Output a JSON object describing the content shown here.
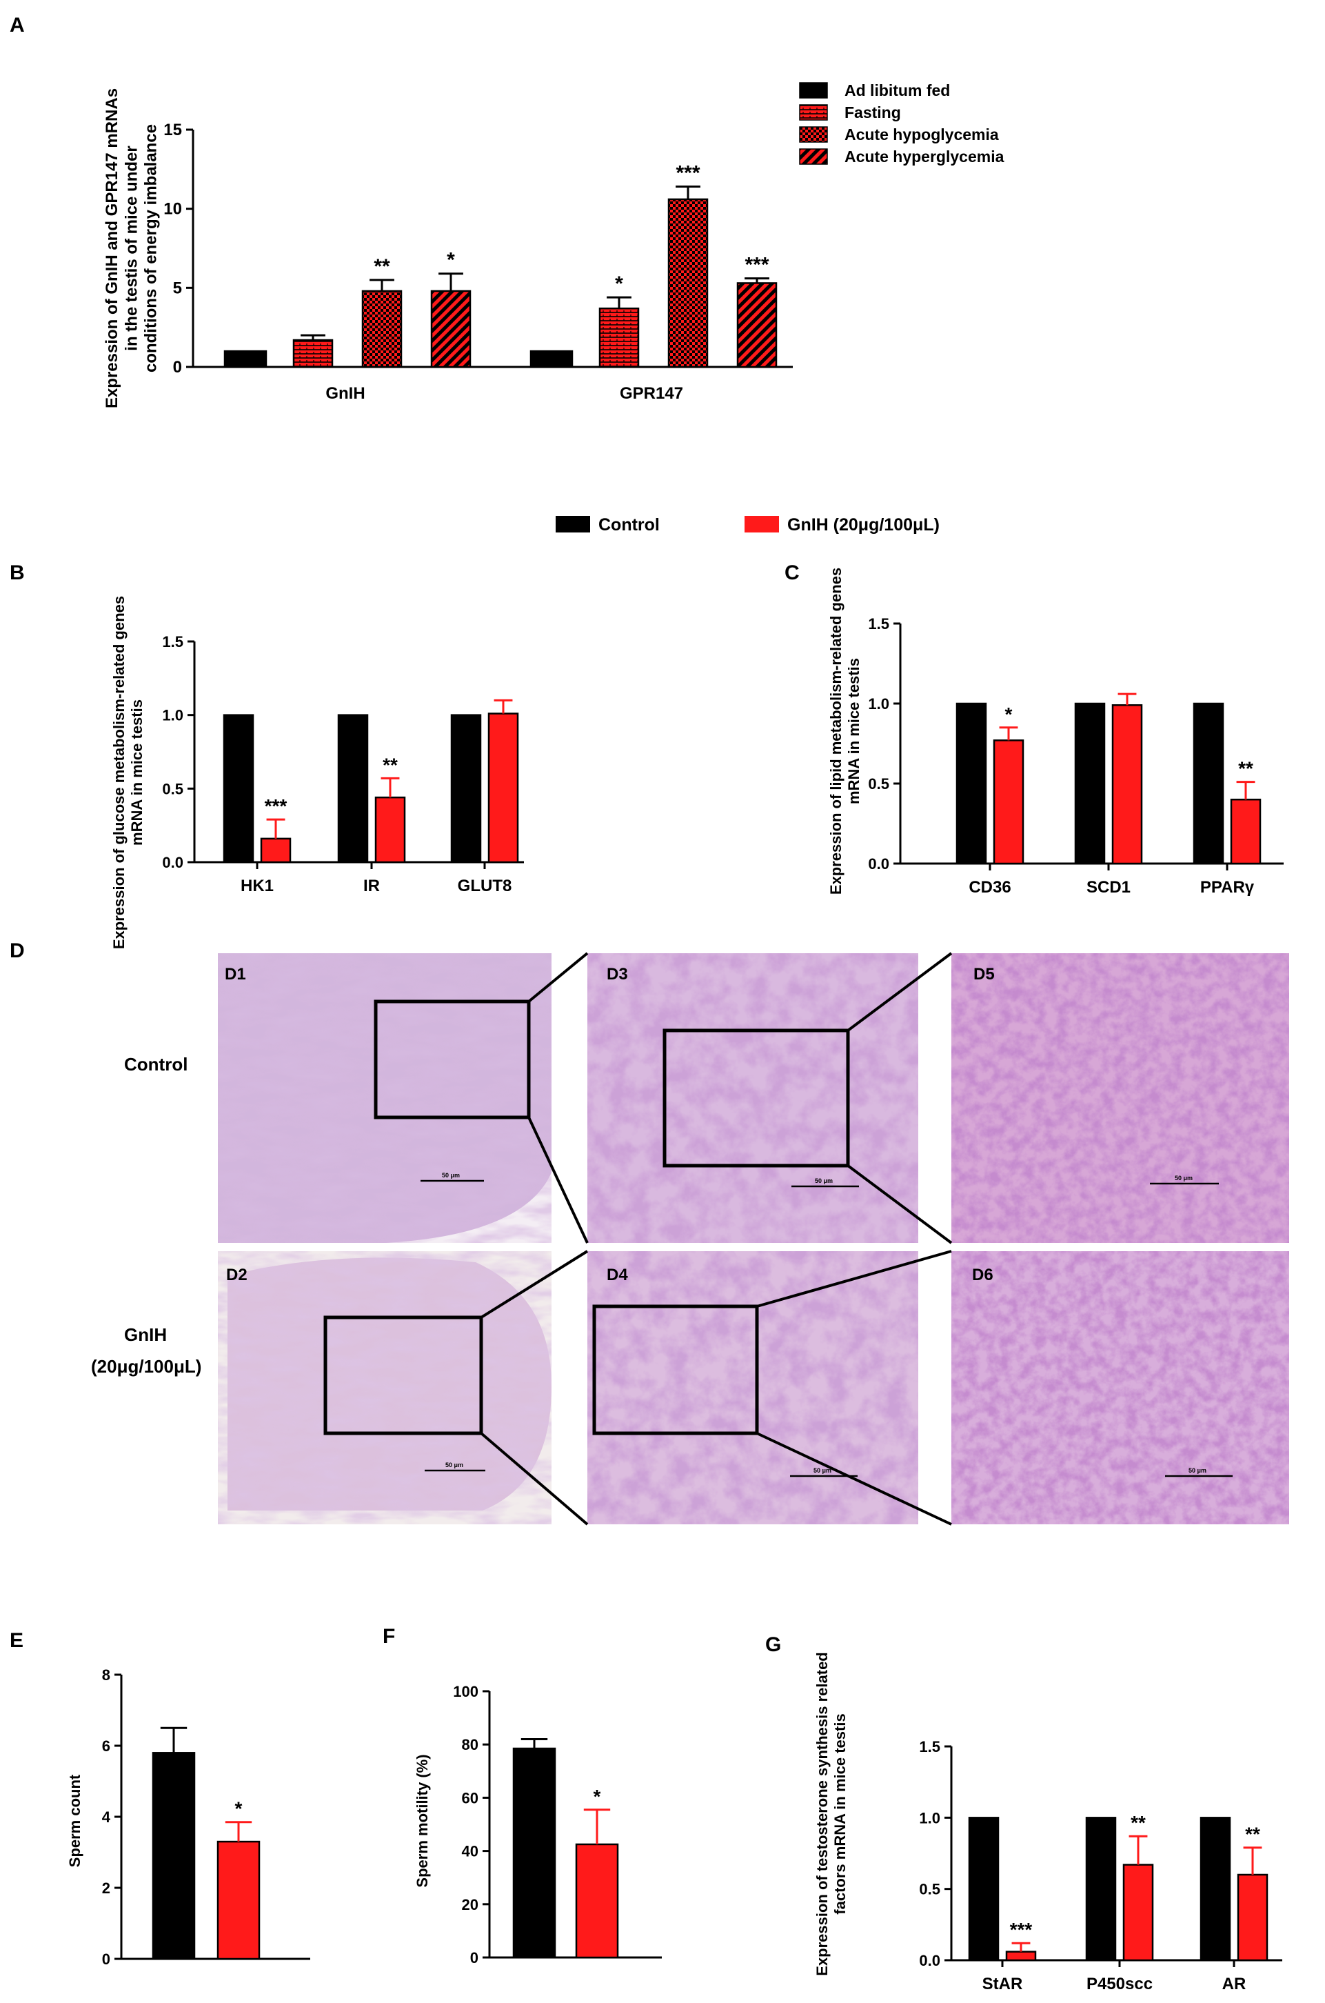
{
  "panels": {
    "A": "A",
    "B": "B",
    "C": "C",
    "D": "D",
    "E": "E",
    "F": "F",
    "G": "G"
  },
  "shared_legend": {
    "control": "Control",
    "gnih": "GnIH (20μg/100μL)",
    "colors": {
      "control": "#000000",
      "gnih": "#ff1a1a"
    }
  },
  "histology": {
    "row_labels": [
      "Control",
      "GnIH",
      "(20μg/100μL)"
    ],
    "tiles": [
      "D1",
      "D3",
      "D5",
      "D2",
      "D4",
      "D6"
    ],
    "scale_bar": "50 μm"
  },
  "chart_data": [
    {
      "id": "A",
      "type": "bar",
      "ylabel": "Expression of GnIH and GPR147 mRNAs in the testis of mice under conditions of energy imbalance",
      "ylim": [
        0,
        15
      ],
      "yticks": [
        0,
        5,
        10,
        15
      ],
      "categories": [
        "GnIH",
        "GPR147"
      ],
      "series": [
        {
          "name": "Ad libitum fed",
          "pattern": "solid",
          "values": [
            1.0,
            1.0
          ],
          "errors": [
            0,
            0
          ],
          "sig": [
            "",
            ""
          ]
        },
        {
          "name": "Fasting",
          "pattern": "brick",
          "values": [
            1.7,
            3.7
          ],
          "errors": [
            0.3,
            0.7
          ],
          "sig": [
            "",
            "*"
          ]
        },
        {
          "name": "Acute hypoglycemia",
          "pattern": "checker",
          "values": [
            4.8,
            10.6
          ],
          "errors": [
            0.7,
            0.8
          ],
          "sig": [
            "**",
            "***"
          ]
        },
        {
          "name": "Acute hyperglycemia",
          "pattern": "diagonal",
          "values": [
            4.8,
            5.3
          ],
          "errors": [
            1.1,
            0.3
          ],
          "sig": [
            "*",
            "***"
          ]
        }
      ],
      "legend": "top-right"
    },
    {
      "id": "B",
      "type": "bar",
      "ylabel": "Expression of glucose metabolism-related genes mRNA in mice testis",
      "ylim": [
        0,
        1.5
      ],
      "yticks": [
        "0.0",
        "0.5",
        "1.0",
        "1.5"
      ],
      "categories": [
        "HK1",
        "IR",
        "GLUT8"
      ],
      "series": [
        {
          "name": "Control",
          "values": [
            1.0,
            1.0,
            1.0
          ],
          "errors": [
            0,
            0,
            0
          ],
          "sig": [
            "",
            "",
            ""
          ]
        },
        {
          "name": "GnIH (20μg/100μL)",
          "values": [
            0.16,
            0.44,
            1.01
          ],
          "errors": [
            0.13,
            0.13,
            0.09
          ],
          "sig": [
            "***",
            "**",
            ""
          ]
        }
      ]
    },
    {
      "id": "C",
      "type": "bar",
      "ylabel": "Expression of lipid metabolism-related genes mRNA in mice testis",
      "ylim": [
        0,
        1.5
      ],
      "yticks": [
        "0.0",
        "0.5",
        "1.0",
        "1.5"
      ],
      "categories": [
        "CD36",
        "SCD1",
        "PPARγ"
      ],
      "series": [
        {
          "name": "Control",
          "values": [
            1.0,
            1.0,
            1.0
          ],
          "errors": [
            0,
            0,
            0
          ],
          "sig": [
            "",
            "",
            ""
          ]
        },
        {
          "name": "GnIH (20μg/100μL)",
          "values": [
            0.77,
            0.99,
            0.4
          ],
          "errors": [
            0.08,
            0.07,
            0.11
          ],
          "sig": [
            "*",
            "",
            "**"
          ]
        }
      ]
    },
    {
      "id": "E",
      "type": "bar",
      "ylabel": "Sperm count",
      "ylim": [
        0,
        8
      ],
      "yticks": [
        0,
        2,
        4,
        6,
        8
      ],
      "categories": [
        "Control",
        "GnIH (20μg/100μL)"
      ],
      "series": [
        {
          "name": "Sperm count",
          "values": [
            5.8,
            3.3
          ],
          "errors": [
            0.7,
            0.55
          ],
          "sig": [
            "",
            "*"
          ]
        }
      ]
    },
    {
      "id": "F",
      "type": "bar",
      "ylabel": "Sperm motility (%)",
      "ylim": [
        0,
        100
      ],
      "yticks": [
        0,
        20,
        40,
        60,
        80,
        100
      ],
      "categories": [
        "Control",
        "GnIH (20μg/100μL)"
      ],
      "series": [
        {
          "name": "Sperm motility",
          "values": [
            78.5,
            42.5
          ],
          "errors": [
            3.5,
            13.0
          ],
          "sig": [
            "",
            "*"
          ]
        }
      ]
    },
    {
      "id": "G",
      "type": "bar",
      "ylabel": "Expression of testosterone synthesis related factors mRNA in mice testis",
      "ylim": [
        0,
        1.5
      ],
      "yticks": [
        "0.0",
        "0.5",
        "1.0",
        "1.5"
      ],
      "categories": [
        "StAR",
        "P450scc",
        "AR"
      ],
      "series": [
        {
          "name": "Control",
          "values": [
            1.0,
            1.0,
            1.0
          ],
          "errors": [
            0,
            0,
            0
          ],
          "sig": [
            "",
            "",
            ""
          ]
        },
        {
          "name": "GnIH (20μg/100μL)",
          "values": [
            0.06,
            0.67,
            0.6
          ],
          "errors": [
            0.06,
            0.2,
            0.19
          ],
          "sig": [
            "***",
            "**",
            "**"
          ]
        }
      ]
    }
  ]
}
